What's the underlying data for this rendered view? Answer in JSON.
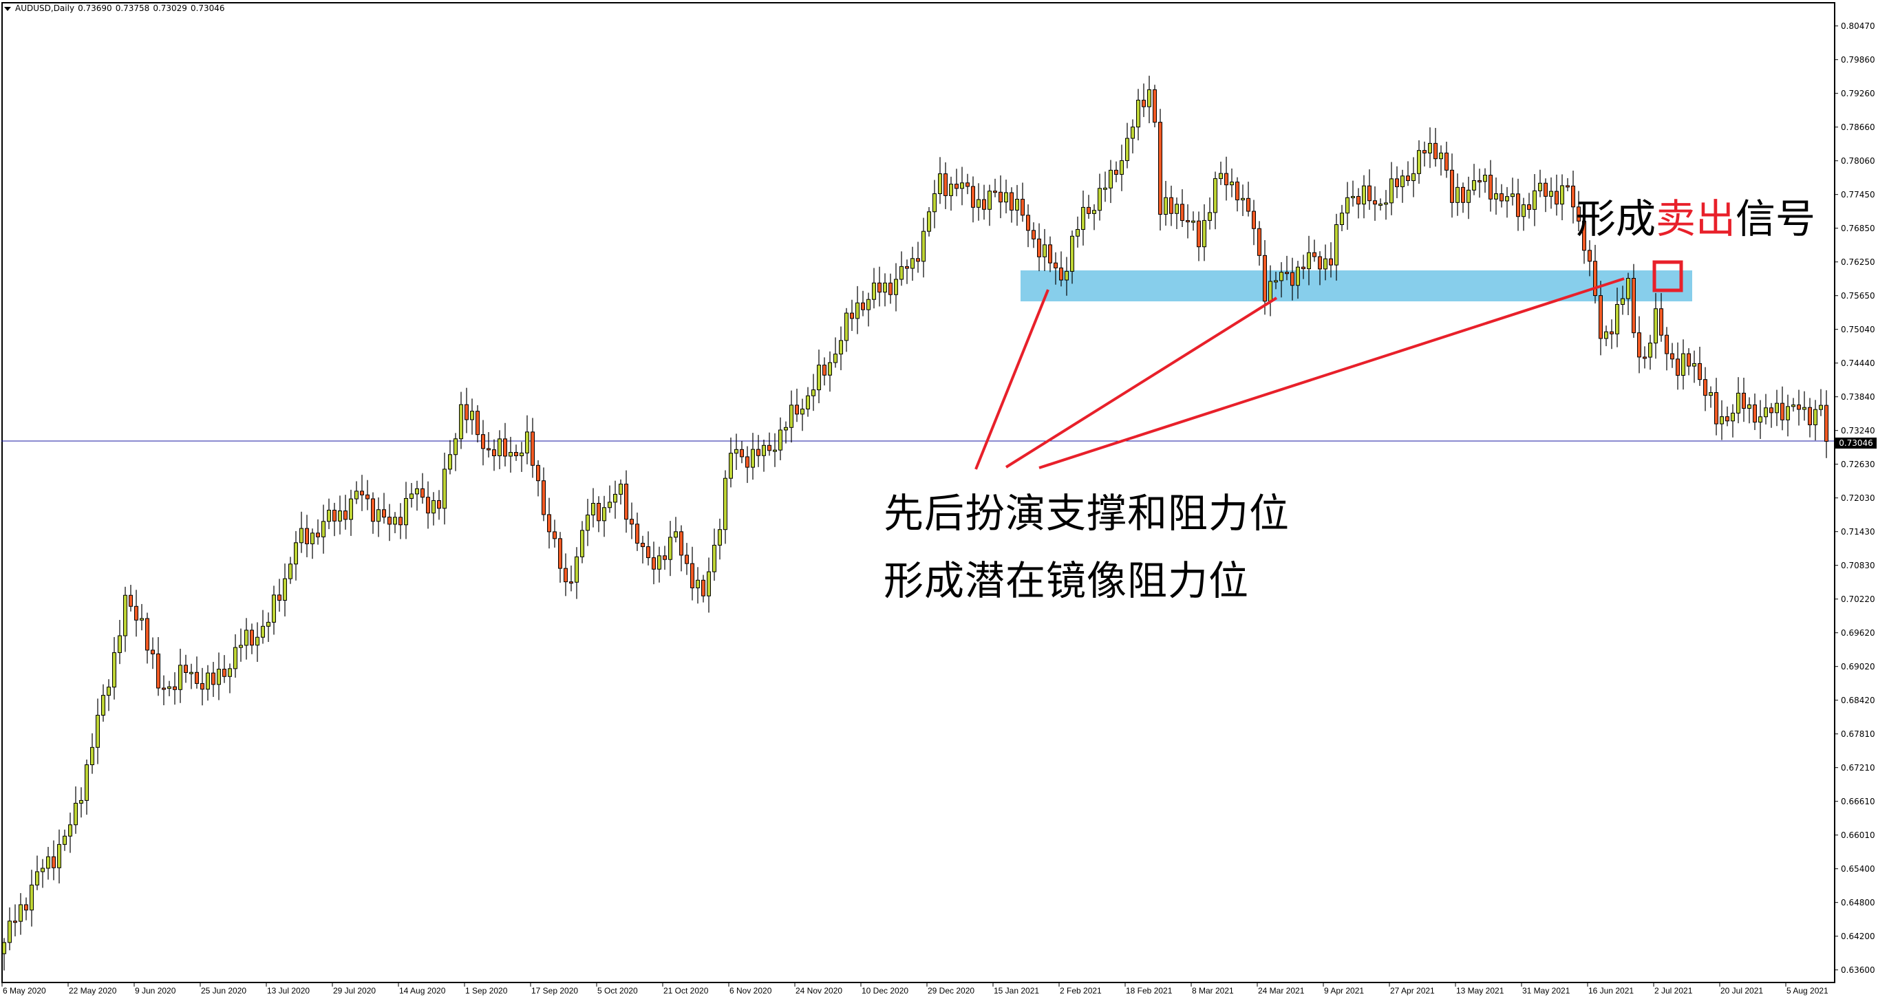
{
  "header": {
    "symbol": "AUDUSD,Daily",
    "open": "0.73690",
    "high": "0.73758",
    "low": "0.73029",
    "close": "0.73046"
  },
  "current_price_label": "0.73046",
  "annotations": {
    "line1": "先后扮演支撑和阻力位",
    "line2": "形成潜在镜像阻力位",
    "signal_prefix": "形成",
    "signal_highlight": "卖出",
    "signal_suffix": "信号",
    "zone_color": "#87CEEB",
    "marker_color": "#e8202a"
  },
  "colors": {
    "bull": "#bfd536",
    "bear": "#f15a24",
    "price_line": "#1a1aa0"
  },
  "chart_data": {
    "type": "candlestick",
    "symbol": "AUDUSD",
    "timeframe": "Daily",
    "y_ticks": [
      "0.80470",
      "0.79860",
      "0.79260",
      "0.78660",
      "0.78060",
      "0.77450",
      "0.76850",
      "0.76250",
      "0.75650",
      "0.75040",
      "0.74440",
      "0.73840",
      "0.73240",
      "0.72630",
      "0.72030",
      "0.71430",
      "0.70830",
      "0.70220",
      "0.69620",
      "0.69020",
      "0.68420",
      "0.67810",
      "0.67210",
      "0.66610",
      "0.66010",
      "0.65400",
      "0.64800",
      "0.64200",
      "0.63600"
    ],
    "x_ticks": [
      "6 May 2020",
      "22 May 2020",
      "9 Jun 2020",
      "25 Jun 2020",
      "13 Jul 2020",
      "29 Jul 2020",
      "14 Aug 2020",
      "1 Sep 2020",
      "17 Sep 2020",
      "5 Oct 2020",
      "21 Oct 2020",
      "6 Nov 2020",
      "24 Nov 2020",
      "10 Dec 2020",
      "29 Dec 2020",
      "15 Jan 2021",
      "2 Feb 2021",
      "18 Feb 2021",
      "8 Mar 2021",
      "24 Mar 2021",
      "9 Apr 2021",
      "27 Apr 2021",
      "13 May 2021",
      "31 May 2021",
      "16 Jun 2021",
      "2 Jul 2021",
      "20 Jul 2021",
      "5 Aug 2021"
    ],
    "ylim": [
      0.636,
      0.8047
    ],
    "current_price": 0.73046,
    "resistance_zone": [
      0.7562,
      0.7616
    ],
    "close_path": [
      [
        "2020-05-06",
        0.6409
      ],
      [
        "2020-05-13",
        0.651
      ],
      [
        "2020-05-22",
        0.661
      ],
      [
        "2020-05-29",
        0.68
      ],
      [
        "2020-06-05",
        0.701
      ],
      [
        "2020-06-10",
        0.699
      ],
      [
        "2020-06-15",
        0.686
      ],
      [
        "2020-06-22",
        0.689
      ],
      [
        "2020-06-29",
        0.687
      ],
      [
        "2020-07-06",
        0.694
      ],
      [
        "2020-07-13",
        0.698
      ],
      [
        "2020-07-20",
        0.712
      ],
      [
        "2020-07-29",
        0.717
      ],
      [
        "2020-08-05",
        0.721
      ],
      [
        "2020-08-12",
        0.715
      ],
      [
        "2020-08-18",
        0.721
      ],
      [
        "2020-08-25",
        0.719
      ],
      [
        "2020-08-31",
        0.737
      ],
      [
        "2020-09-04",
        0.73
      ],
      [
        "2020-09-10",
        0.728
      ],
      [
        "2020-09-16",
        0.73
      ],
      [
        "2020-09-21",
        0.719
      ],
      [
        "2020-09-25",
        0.704
      ],
      [
        "2020-10-01",
        0.717
      ],
      [
        "2020-10-09",
        0.721
      ],
      [
        "2020-10-16",
        0.708
      ],
      [
        "2020-10-23",
        0.713
      ],
      [
        "2020-10-30",
        0.702
      ],
      [
        "2020-11-04",
        0.717
      ],
      [
        "2020-11-06",
        0.728
      ],
      [
        "2020-11-16",
        0.728
      ],
      [
        "2020-11-24",
        0.736
      ],
      [
        "2020-12-01",
        0.743
      ],
      [
        "2020-12-09",
        0.755
      ],
      [
        "2020-12-16",
        0.758
      ],
      [
        "2020-12-23",
        0.762
      ],
      [
        "2020-12-31",
        0.777
      ],
      [
        "2021-01-06",
        0.776
      ],
      [
        "2021-01-13",
        0.773
      ],
      [
        "2021-01-19",
        0.775
      ],
      [
        "2021-01-26",
        0.767
      ],
      [
        "2021-01-29",
        0.762
      ],
      [
        "2021-02-02",
        0.76
      ],
      [
        "2021-02-08",
        0.771
      ],
      [
        "2021-02-15",
        0.777
      ],
      [
        "2021-02-24",
        0.794
      ],
      [
        "2021-02-25",
        0.788
      ],
      [
        "2021-02-26",
        0.771
      ],
      [
        "2021-03-03",
        0.773
      ],
      [
        "2021-03-09",
        0.766
      ],
      [
        "2021-03-12",
        0.777
      ],
      [
        "2021-03-18",
        0.776
      ],
      [
        "2021-03-23",
        0.768
      ],
      [
        "2021-03-25",
        0.758
      ],
      [
        "2021-03-31",
        0.76
      ],
      [
        "2021-04-07",
        0.763
      ],
      [
        "2021-04-12",
        0.763
      ],
      [
        "2021-04-15",
        0.775
      ],
      [
        "2021-04-22",
        0.773
      ],
      [
        "2021-04-28",
        0.776
      ],
      [
        "2021-05-05",
        0.782
      ],
      [
        "2021-05-10",
        0.783
      ],
      [
        "2021-05-12",
        0.773
      ],
      [
        "2021-05-18",
        0.777
      ],
      [
        "2021-05-24",
        0.775
      ],
      [
        "2021-05-28",
        0.772
      ],
      [
        "2021-06-03",
        0.775
      ],
      [
        "2021-06-10",
        0.775
      ],
      [
        "2021-06-15",
        0.767
      ],
      [
        "2021-06-17",
        0.756
      ],
      [
        "2021-06-18",
        0.748
      ],
      [
        "2021-06-25",
        0.758
      ],
      [
        "2021-06-28",
        0.75
      ],
      [
        "2021-06-30",
        0.745
      ],
      [
        "2021-07-02",
        0.752
      ],
      [
        "2021-07-08",
        0.743
      ],
      [
        "2021-07-13",
        0.745
      ],
      [
        "2021-07-19",
        0.734
      ],
      [
        "2021-07-23",
        0.737
      ],
      [
        "2021-07-30",
        0.735
      ],
      [
        "2021-08-05",
        0.737
      ],
      [
        "2021-08-10",
        0.735
      ],
      [
        "2021-08-13",
        0.7369
      ],
      [
        "2021-08-16",
        0.73046
      ]
    ]
  }
}
